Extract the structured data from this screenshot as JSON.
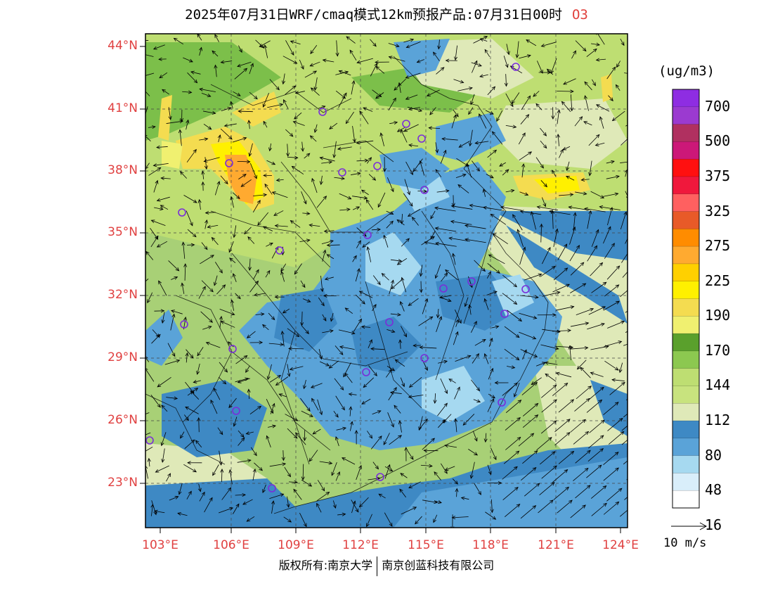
{
  "title": "2025年07月31日WRF/cmaq模式12km预报产品:07月31日00时",
  "species": "O3",
  "unit": "(ug/m3)",
  "wind_ref_label": "10 m/s",
  "footer": {
    "left": "版权所有:南京大学",
    "right": "南京创蓝科技有限公司"
  },
  "lat_labels": [
    "44°N",
    "41°N",
    "38°N",
    "35°N",
    "32°N",
    "29°N",
    "26°N",
    "23°N"
  ],
  "lon_labels": [
    "103°E",
    "106°E",
    "109°E",
    "112°E",
    "115°E",
    "118°E",
    "121°E",
    "124°E"
  ],
  "colorbar": {
    "labels": [
      "700",
      "500",
      "375",
      "325",
      "275",
      "225",
      "190",
      "170",
      "144",
      "112",
      "80",
      "48",
      "16"
    ],
    "colors": [
      "#8e2de2",
      "#9b3ad0",
      "#b03060",
      "#cc1878",
      "#ff1010",
      "#f0183c",
      "#ff6060",
      "#e85a28",
      "#ff8c00",
      "#ffaa30",
      "#ffd000",
      "#fff000",
      "#f4dc50",
      "#f0f070",
      "#5aa02c",
      "#8cc850",
      "#bede72",
      "#c8e37e",
      "#dfe9b8",
      "#3e89c4",
      "#5aa3d8",
      "#a6d9f0",
      "#d9eefa",
      "#ffffff"
    ]
  },
  "colors": {
    "label_red": "#e04040",
    "station_marker": "#7a2dd9"
  }
}
